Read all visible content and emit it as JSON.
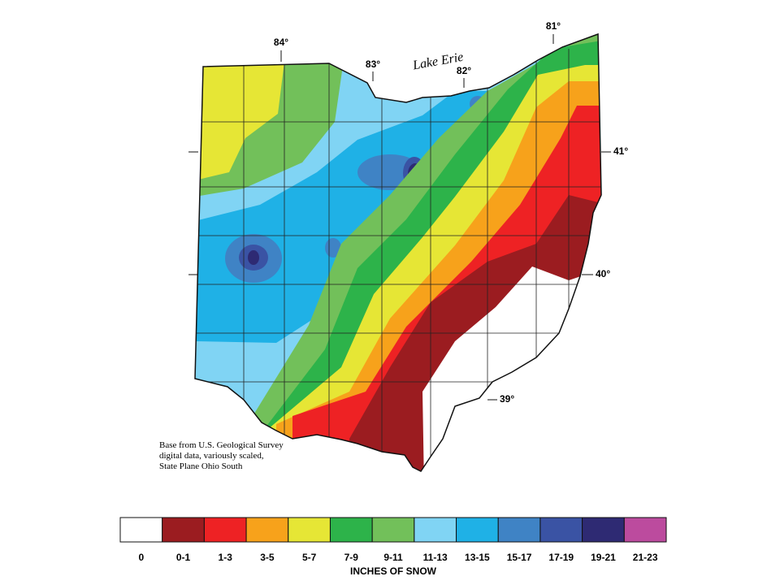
{
  "map": {
    "longitude_labels": [
      "84°",
      "83°",
      "82°",
      "81°"
    ],
    "latitude_labels": [
      "41°",
      "40°",
      "39°"
    ],
    "lake_label": "Lake Erie",
    "source_note": [
      "Base from U.S. Geological Survey",
      "digital data, variously scaled,",
      "State Plane Ohio South"
    ]
  },
  "legend": {
    "title": "INCHES OF SNOW",
    "items": [
      {
        "label": "0",
        "color": "#ffffff"
      },
      {
        "label": "0-1",
        "color": "#9b1c20"
      },
      {
        "label": "1-3",
        "color": "#ee2224"
      },
      {
        "label": "3-5",
        "color": "#f7a21b"
      },
      {
        "label": "5-7",
        "color": "#e6e635"
      },
      {
        "label": "7-9",
        "color": "#2db34a"
      },
      {
        "label": "9-11",
        "color": "#72c05a"
      },
      {
        "label": "11-13",
        "color": "#80d4f4"
      },
      {
        "label": "13-15",
        "color": "#1fb1e6"
      },
      {
        "label": "15-17",
        "color": "#3f83c5"
      },
      {
        "label": "17-19",
        "color": "#3a53a4"
      },
      {
        "label": "19-21",
        "color": "#2e2a73"
      },
      {
        "label": "21-23",
        "color": "#bc4b9e"
      }
    ]
  }
}
